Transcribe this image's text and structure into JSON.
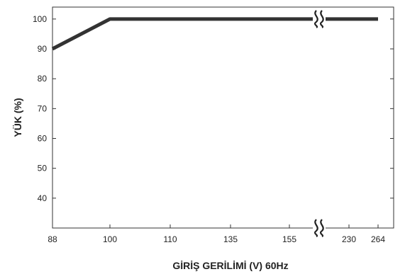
{
  "chart_data": {
    "type": "line",
    "title": "",
    "xlabel": "GİRİŞ GERİLİMİ (V) 60Hz",
    "ylabel": "YÜK (%)",
    "x_tick_labels": [
      "88",
      "100",
      "110",
      "135",
      "155",
      "230",
      "264"
    ],
    "y_tick_labels": [
      "40",
      "50",
      "60",
      "70",
      "80",
      "90",
      "100"
    ],
    "ylim": [
      30,
      104
    ],
    "axis_break": "between 155 and 230",
    "grid": false,
    "legend": "none",
    "series": [
      {
        "x": [
          "88",
          "100",
          "264"
        ],
        "values": [
          90,
          100,
          100
        ]
      }
    ],
    "line_color": "#333333"
  }
}
